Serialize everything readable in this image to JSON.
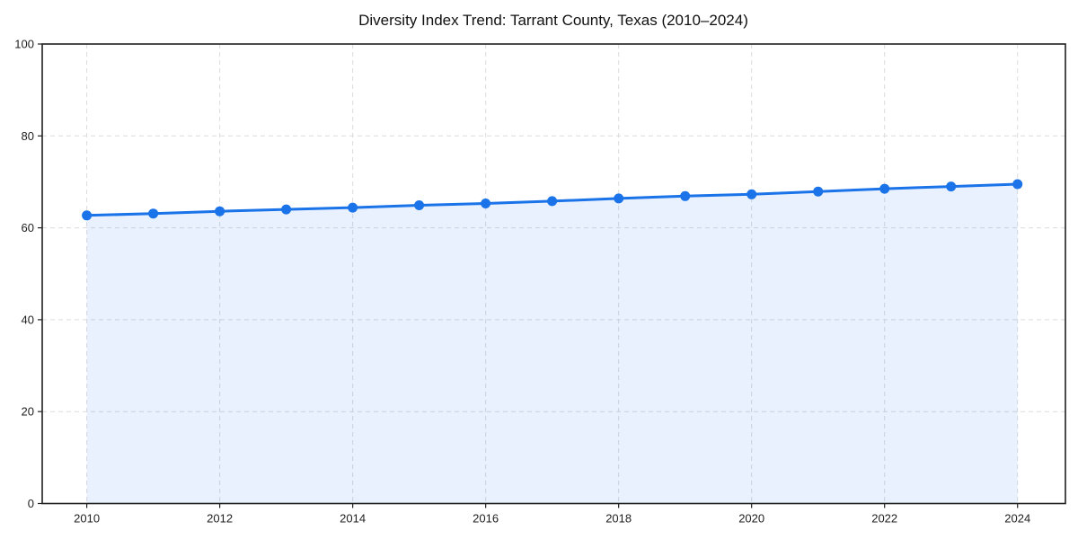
{
  "figure": {
    "background": "#ffffff"
  },
  "chart_data": {
    "type": "area",
    "title": "Diversity Index Trend: Tarrant County, Texas (2010–2024)",
    "series_name": "Diversity Index",
    "x": [
      2010,
      2011,
      2012,
      2013,
      2014,
      2015,
      2016,
      2017,
      2018,
      2019,
      2020,
      2021,
      2022,
      2023,
      2024
    ],
    "values": [
      62.7,
      63.1,
      63.6,
      64.0,
      64.4,
      64.9,
      65.3,
      65.8,
      66.4,
      66.9,
      67.3,
      67.9,
      68.5,
      69.0,
      69.5
    ],
    "xlabel": "",
    "ylabel": "",
    "xlim": [
      2009.33,
      2024.72
    ],
    "ylim": [
      0,
      100
    ],
    "xticks": [
      2010,
      2012,
      2014,
      2016,
      2018,
      2020,
      2022,
      2024
    ],
    "yticks": [
      0,
      20,
      40,
      60,
      80,
      100
    ],
    "grid": true,
    "grid_style": "dashed",
    "legend_position": "none",
    "marker": "circle",
    "colors": {
      "line": "#1a73e8",
      "marker": "#1a73e8",
      "fill": "rgba(26,115,232,0.10)",
      "grid": "#dcdcdc",
      "spine": "#1f1f1f",
      "tick": "#1f1f1f",
      "tick_label": "#1f1f1f",
      "title": "#111111",
      "background": "#ffffff"
    }
  }
}
